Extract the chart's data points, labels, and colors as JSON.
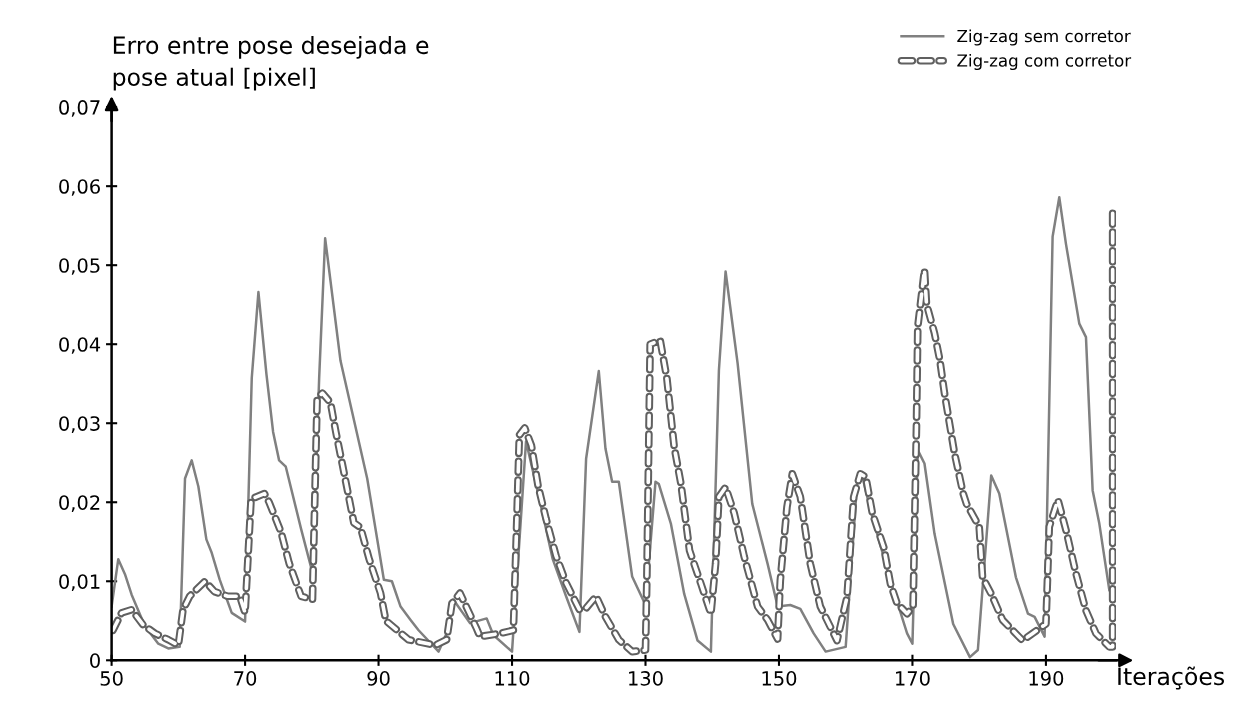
{
  "chart_data": {
    "type": "line",
    "ylabel": "Erro entre pose desejada e\npose atual [pixel]",
    "xlabel": "Iterações",
    "xlim": [
      50,
      200.5
    ],
    "xticks": [
      50,
      70,
      90,
      110,
      130,
      150,
      170,
      190
    ],
    "ylim": [
      0,
      0.07
    ],
    "yticks": [
      0,
      {
        "value": 0.01,
        "label": "0,01"
      },
      {
        "value": 0.02,
        "label": "0,02"
      },
      {
        "value": 0.03,
        "label": "0,03"
      },
      {
        "value": 0.04,
        "label": "0,04"
      },
      {
        "value": 0.05,
        "label": "0,05"
      },
      {
        "value": 0.06,
        "label": "0,06"
      },
      {
        "value": 0.07,
        "label": "0,07"
      }
    ],
    "grid": false,
    "legend": "top right",
    "marker": "none",
    "series": [
      {
        "name": "Zig-zag sem corretor",
        "color": "#808080",
        "line_style": "solid",
        "x": [
          50,
          51,
          52,
          53,
          55,
          57,
          58.5,
          60.2,
          61,
          62,
          63,
          64.2,
          65,
          66.2,
          68,
          70,
          71,
          72,
          73.2,
          74.2,
          75.1,
          76.1,
          78.4,
          80.1,
          81.1,
          82,
          84.3,
          88.3,
          90.8,
          92,
          93.3,
          94.8,
          96,
          99,
          100.5,
          101.2,
          103.7,
          106.2,
          107.2,
          110,
          112.1,
          114.1,
          116.1,
          118.1,
          120.1,
          121.1,
          123,
          124,
          125,
          126,
          128,
          130,
          131.5,
          132,
          133.8,
          135.8,
          137.8,
          139.8,
          141,
          142,
          143.8,
          146,
          148.3,
          149.8,
          151.7,
          153.2,
          155.2,
          157,
          160,
          161.7,
          162.4,
          163.7,
          166.7,
          169.2,
          170,
          170.8,
          171.8,
          173.3,
          176.1,
          178.6,
          179.8,
          181.8,
          183,
          185.5,
          187.3,
          188.3,
          189.8,
          191,
          192,
          193,
          195,
          196,
          197,
          198,
          199.5
        ],
        "values": [
          0.0068,
          0.0128,
          0.0109,
          0.0083,
          0.0043,
          0.0021,
          0.0015,
          0.0017,
          0.023,
          0.0253,
          0.022,
          0.0153,
          0.0136,
          0.0102,
          0.006,
          0.0049,
          0.0357,
          0.0466,
          0.0362,
          0.0289,
          0.0253,
          0.0245,
          0.0166,
          0.0111,
          0.0357,
          0.0534,
          0.0379,
          0.023,
          0.0102,
          0.01,
          0.0068,
          0.0051,
          0.0038,
          0.0011,
          0.004,
          0.0077,
          0.0047,
          0.0053,
          0.0032,
          0.0011,
          0.0277,
          0.0204,
          0.0128,
          0.0081,
          0.0036,
          0.0255,
          0.0366,
          0.0268,
          0.0226,
          0.0226,
          0.0106,
          0.007,
          0.0226,
          0.0223,
          0.0173,
          0.0084,
          0.0025,
          0.0011,
          0.0367,
          0.0492,
          0.0376,
          0.0198,
          0.0122,
          0.0068,
          0.007,
          0.0065,
          0.0034,
          0.0011,
          0.0017,
          0.0224,
          0.0236,
          0.019,
          0.0101,
          0.0034,
          0.0021,
          0.0266,
          0.0249,
          0.016,
          0.0046,
          0.0004,
          0.0013,
          0.0234,
          0.0211,
          0.0105,
          0.0059,
          0.0055,
          0.003,
          0.0536,
          0.0586,
          0.0527,
          0.0426,
          0.0409,
          0.0215,
          0.0173,
          0.0089
        ]
      },
      {
        "name": "Zig-zag com corretor",
        "color": "#606060",
        "line_style": "dashed",
        "x": [
          50.2,
          51.5,
          53,
          54.7,
          56.5,
          58.5,
          60,
          60.7,
          61.7,
          64,
          65.4,
          67.4,
          69.2,
          70,
          70.9,
          72.9,
          73.6,
          75.4,
          76.6,
          78.4,
          80.1,
          80.8,
          81.6,
          82.8,
          83.6,
          84.6,
          86.3,
          87.3,
          88.6,
          90.3,
          91.1,
          94.5,
          98.5,
          100.2,
          101,
          102.2,
          104.7,
          105.2,
          108.2,
          110.2,
          110.6,
          111.1,
          111.9,
          112.9,
          113.9,
          115.1,
          116.6,
          118.1,
          120.1,
          121.1,
          122.6,
          124,
          126,
          128,
          130,
          130.2,
          130.7,
          132.2,
          133.2,
          134.3,
          135.3,
          136.6,
          138.3,
          139.8,
          140.5,
          141,
          142,
          143.3,
          144.8,
          146.8,
          148.3,
          149.8,
          150.2,
          151.2,
          152,
          153.2,
          154.7,
          156.2,
          158.7,
          160.2,
          161.2,
          162.2,
          163,
          164,
          165.7,
          166.7,
          167.7,
          169.2,
          170.1,
          170.6,
          170.8,
          171.8,
          172.1,
          173.3,
          174.1,
          174.8,
          176.3,
          177.6,
          178.1,
          180,
          180.5,
          181.8,
          183.5,
          186.5,
          188,
          190,
          190.5,
          191.8,
          193,
          194.5,
          196,
          197.5,
          199.5,
          200,
          200
        ],
        "values": [
          0.0038,
          0.006,
          0.0064,
          0.0045,
          0.0034,
          0.0026,
          0.0019,
          0.0064,
          0.0081,
          0.01,
          0.0087,
          0.0081,
          0.0081,
          0.006,
          0.0204,
          0.0211,
          0.02,
          0.0162,
          0.0123,
          0.0081,
          0.0077,
          0.0332,
          0.0338,
          0.0326,
          0.0289,
          0.0247,
          0.0174,
          0.0168,
          0.0128,
          0.0085,
          0.005,
          0.0026,
          0.0019,
          0.0026,
          0.0072,
          0.0085,
          0.004,
          0.003,
          0.0034,
          0.0038,
          0.0145,
          0.0285,
          0.0294,
          0.0272,
          0.0221,
          0.0179,
          0.0132,
          0.0098,
          0.0064,
          0.0066,
          0.0081,
          0.0055,
          0.0026,
          0.0011,
          0.0013,
          0.0102,
          0.04,
          0.0405,
          0.0357,
          0.027,
          0.0224,
          0.0139,
          0.0097,
          0.0059,
          0.0122,
          0.0207,
          0.0219,
          0.0186,
          0.0131,
          0.0068,
          0.0051,
          0.0027,
          0.0101,
          0.0194,
          0.0236,
          0.0207,
          0.0122,
          0.0068,
          0.0025,
          0.008,
          0.0207,
          0.0236,
          0.0232,
          0.0186,
          0.0143,
          0.0097,
          0.0072,
          0.0059,
          0.0068,
          0.0295,
          0.0422,
          0.0494,
          0.0451,
          0.0414,
          0.038,
          0.0338,
          0.0262,
          0.0211,
          0.0198,
          0.0169,
          0.0105,
          0.0084,
          0.0051,
          0.0025,
          0.0034,
          0.0046,
          0.0169,
          0.0203,
          0.0165,
          0.011,
          0.0063,
          0.0034,
          0.0017,
          0.0017,
          0.057
        ]
      }
    ]
  }
}
